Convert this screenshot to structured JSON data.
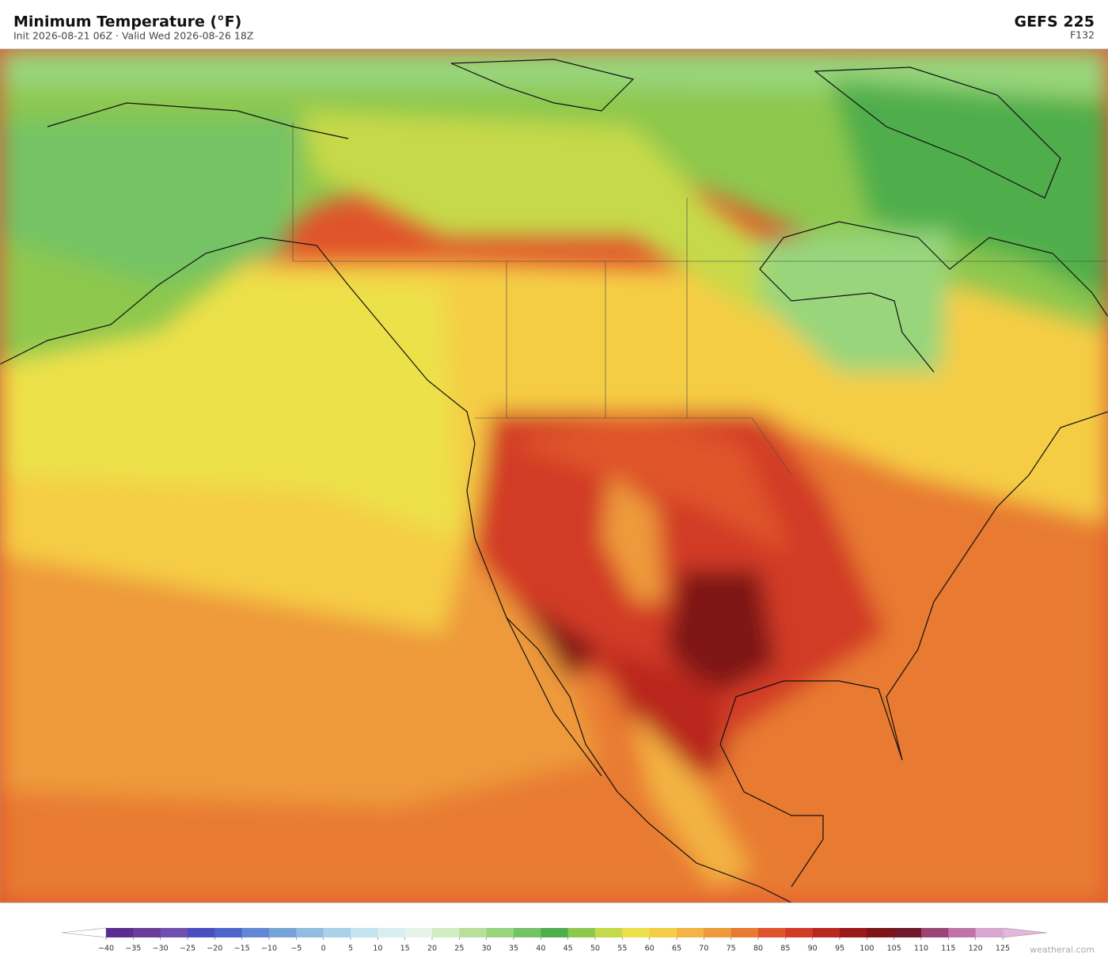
{
  "header": {
    "title": "Minimum Temperature  (°F)",
    "subtitle": "Init 2026-08-21 06Z   ·   Valid Wed 2026-08-26 18Z",
    "model": "GEFS  225",
    "forecast_hour": "F132"
  },
  "colorbar": {
    "ticks": [
      {
        "value": -40,
        "label": "−40"
      },
      {
        "value": -35,
        "label": "−35"
      },
      {
        "value": -30,
        "label": "−30"
      },
      {
        "value": -25,
        "label": "−25"
      },
      {
        "value": -20,
        "label": "−20"
      },
      {
        "value": -15,
        "label": "−15"
      },
      {
        "value": -10,
        "label": "−10"
      },
      {
        "value": -5,
        "label": "−5"
      },
      0,
      5,
      10,
      15,
      20,
      25,
      30,
      35,
      40,
      45,
      50,
      55,
      60,
      65,
      70,
      75,
      80,
      85,
      90,
      95,
      100,
      105,
      110,
      115,
      120,
      125
    ],
    "colors": [
      "#5b2d8e",
      "#6a3d9a",
      "#6f4fb0",
      "#4a4fc0",
      "#4f65cc",
      "#6088d4",
      "#77a4d8",
      "#93bde0",
      "#a9d1ea",
      "#c3e3ef",
      "#d8eef0",
      "#e6f3e6",
      "#d2ecc4",
      "#b8e09c",
      "#98d57c",
      "#74c365",
      "#4fae4c",
      "#8dc84e",
      "#c6d94a",
      "#ece14a",
      "#f5cd45",
      "#f3b443",
      "#ee9a3a",
      "#e87a31",
      "#e0542b",
      "#d23b27",
      "#b9281f",
      "#9a1a1a",
      "#7e1417",
      "#6e1a2a",
      "#9b4577",
      "#c073a8",
      "#d8a6d0"
    ],
    "under_color": "#ffffff",
    "over_color": "#e4b6dc"
  },
  "footer": {
    "brand": "weatherai.com"
  }
}
